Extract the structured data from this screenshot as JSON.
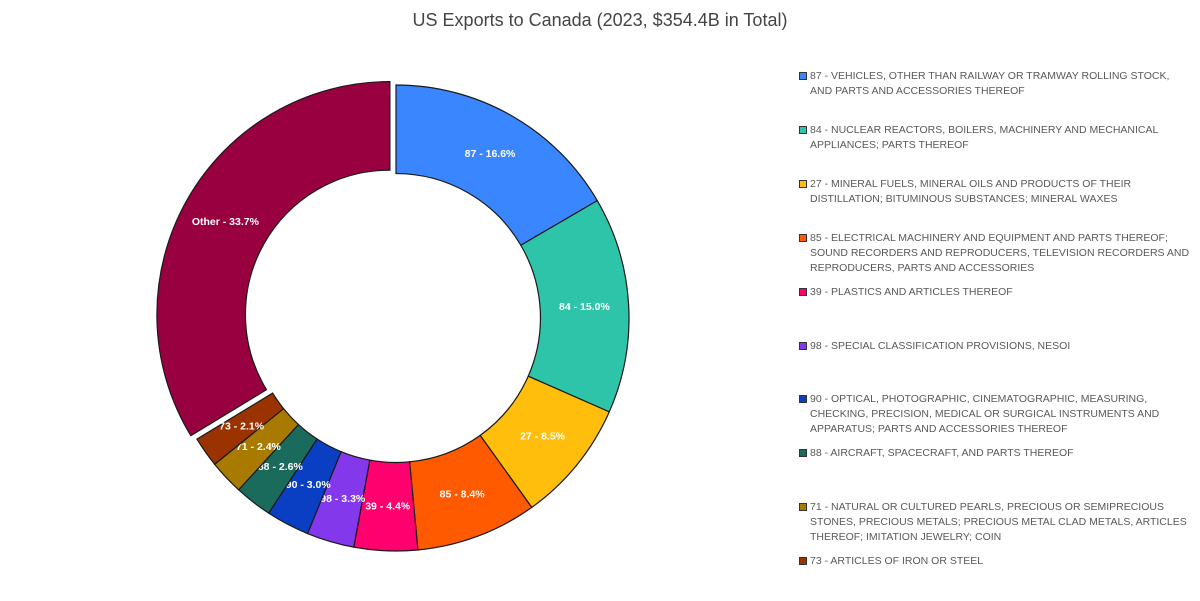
{
  "chart_data": {
    "type": "pie",
    "title": "US Exports to Canada (2023, $354.4B in Total)",
    "slices": [
      {
        "label": "87 - 16.6%",
        "value": 16.6,
        "color": "#3A86FF",
        "legend": "87 - VEHICLES, OTHER THAN RAILWAY OR TRAMWAY ROLLING STOCK, AND PARTS AND ACCESSORIES THEREOF"
      },
      {
        "label": "84 - 15.0%",
        "value": 15.0,
        "color": "#2EC4A9",
        "legend": "84 - NUCLEAR REACTORS, BOILERS, MACHINERY AND MECHANICAL APPLIANCES; PARTS THEREOF"
      },
      {
        "label": "27 - 8.5%",
        "value": 8.5,
        "color": "#FFBE0B",
        "legend": "27 - MINERAL FUELS, MINERAL OILS AND PRODUCTS OF THEIR DISTILLATION; BITUMINOUS SUBSTANCES; MINERAL WAXES"
      },
      {
        "label": "85 - 8.4%",
        "value": 8.4,
        "color": "#FF5A00",
        "legend": "85 - ELECTRICAL MACHINERY AND EQUIPMENT AND PARTS THEREOF; SOUND RECORDERS AND REPRODUCERS, TELEVISION RECORDERS AND REPRODUCERS, PARTS AND ACCESSORIES"
      },
      {
        "label": "39 - 4.4%",
        "value": 4.4,
        "color": "#FF006E",
        "legend": "39 - PLASTICS AND ARTICLES THEREOF"
      },
      {
        "label": "98 - 3.3%",
        "value": 3.3,
        "color": "#8338EC",
        "legend": "98 - SPECIAL CLASSIFICATION PROVISIONS, NESOI"
      },
      {
        "label": "90 - 3.0%",
        "value": 3.0,
        "color": "#0A3FC4",
        "legend": "90 - OPTICAL, PHOTOGRAPHIC, CINEMATOGRAPHIC, MEASURING, CHECKING, PRECISION, MEDICAL OR SURGICAL INSTRUMENTS AND APPARATUS; PARTS AND ACCESSORIES THEREOF"
      },
      {
        "label": "88 - 2.6%",
        "value": 2.6,
        "color": "#1B6B5C",
        "legend": "88 - AIRCRAFT, SPACECRAFT, AND PARTS THEREOF"
      },
      {
        "label": "71 - 2.4%",
        "value": 2.4,
        "color": "#A87A00",
        "legend": "71 - NATURAL OR CULTURED PEARLS, PRECIOUS OR SEMIPRECIOUS STONES, PRECIOUS METALS; PRECIOUS METAL CLAD METALS, ARTICLES THEREOF; IMITATION JEWELRY; COIN"
      },
      {
        "label": "73 - 2.1%",
        "value": 2.1,
        "color": "#9A3300",
        "legend": "73 - ARTICLES OF IRON OR STEEL"
      },
      {
        "label": "Other - 33.7%",
        "value": 33.7,
        "color": "#990040"
      }
    ],
    "inner_radius_ratio": 0.62,
    "legend_position": "right"
  }
}
